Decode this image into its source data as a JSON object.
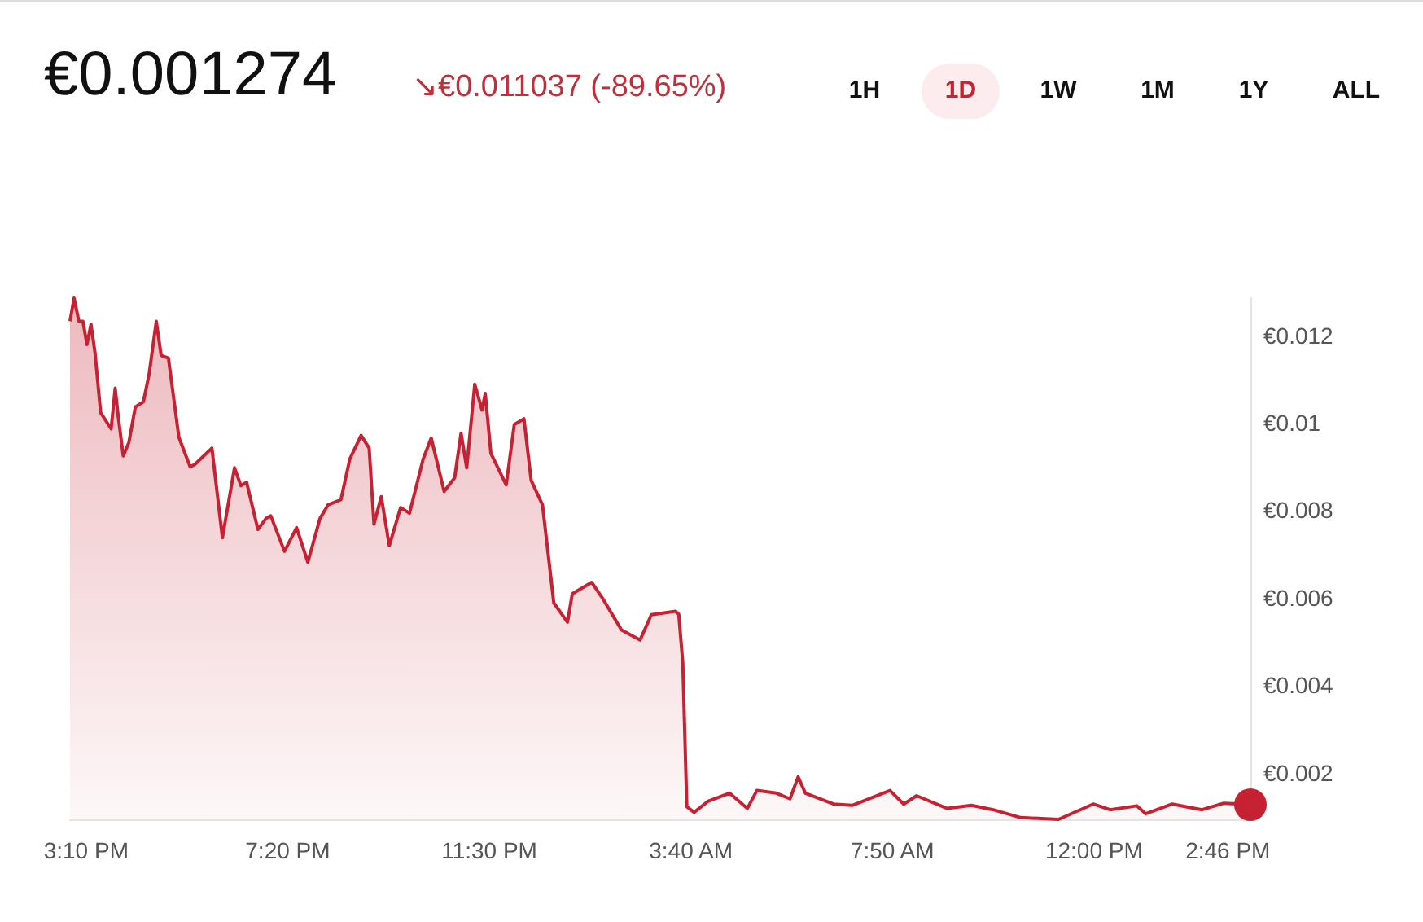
{
  "chart_data": {
    "type": "area",
    "title": "€0.001274",
    "subtitle": "↘€0.011037 (-89.65%)",
    "annotations": [
      "1H",
      "1D",
      "1W",
      "1M",
      "1Y",
      "ALL"
    ],
    "x": [
      "--01-01T14:50",
      "--01-01T14:55",
      "--01-01T15:01",
      "--01-01T15:06",
      "--01-01T15:11",
      "--01-01T15:16",
      "--01-01T15:21",
      "--01-01T15:28",
      "--01-01T15:41",
      "--01-01T15:46",
      "--01-01T15:50",
      "--01-01T15:56",
      "--01-01T16:03",
      "--01-01T16:11",
      "--01-01T16:21",
      "--01-01T16:28",
      "--01-01T16:37",
      "--01-01T16:43",
      "--01-01T16:52",
      "--01-01T17:05",
      "--01-01T17:19",
      "--01-01T17:25",
      "--01-01T17:46",
      "--01-01T17:59",
      "--01-01T18:14",
      "--01-01T18:22",
      "--01-01T18:29",
      "--01-01T18:43",
      "--01-01T18:53",
      "--01-01T18:59",
      "--01-01T19:16",
      "--01-01T19:31",
      "--01-01T19:45",
      "--01-01T20:00",
      "--01-01T20:10",
      "--01-01T20:26",
      "--01-01T20:37",
      "--01-01T20:51",
      "--01-01T21:01",
      "--01-01T21:07",
      "--01-01T21:16",
      "--01-01T21:26",
      "--01-01T21:40",
      "--01-01T21:51",
      "--01-01T22:08",
      "--01-01T22:18",
      "--01-01T22:34",
      "--01-01T22:47",
      "--01-01T22:55",
      "--01-01T23:02",
      "--01-01T23:12",
      "--01-01T23:21",
      "--01-01T23:25",
      "--01-01T23:32",
      "--01-01T23:51",
      "--01-02T00:01",
      "--01-02T00:13",
      "--01-02T00:22",
      "--01-02T00:36",
      "--01-02T00:50",
      "--01-02T01:07",
      "--01-02T01:13",
      "--01-02T01:37",
      "--01-02T01:50",
      "--01-02T02:14",
      "--01-02T02:37",
      "--01-02T02:51",
      "--01-02T03:21",
      "--01-02T03:25",
      "--01-02T03:30",
      "--01-02T03:35",
      "--01-02T03:44",
      "--01-02T04:01",
      "--01-02T04:28",
      "--01-02T04:50",
      "--01-02T05:02",
      "--01-02T05:26",
      "--01-02T05:43",
      "--01-02T05:53",
      "--01-02T06:02",
      "--01-02T06:37",
      "--01-02T07:00",
      "--01-02T07:47",
      "--01-02T08:04",
      "--01-02T08:20",
      "--01-02T08:58",
      "--01-02T09:28",
      "--01-02T09:55",
      "--01-02T10:29",
      "--01-02T11:16",
      "--01-02T11:59",
      "--01-02T12:20",
      "--01-02T12:53",
      "--01-02T13:04",
      "--01-02T13:37",
      "--01-02T14:14",
      "--01-02T14:41",
      "--01-02T15:14"
    ],
    "series": [
      {
        "color": "#c62233",
        "values": [
          0.01232,
          0.01285,
          0.01232,
          0.01232,
          0.01179,
          0.01225,
          0.0116,
          0.01023,
          0.00986,
          0.01079,
          0.01011,
          0.00924,
          0.00955,
          0.01036,
          0.01048,
          0.0111,
          0.01232,
          0.01154,
          0.01148,
          0.00967,
          0.00899,
          0.00905,
          0.00942,
          0.00737,
          0.00897,
          0.00856,
          0.00864,
          0.00756,
          0.00781,
          0.00787,
          0.00706,
          0.0076,
          0.00681,
          0.00781,
          0.00812,
          0.00824,
          0.00917,
          0.00971,
          0.00942,
          0.00768,
          0.00831,
          0.00719,
          0.00806,
          0.00793,
          0.00917,
          0.00965,
          0.00843,
          0.00874,
          0.00976,
          0.00897,
          0.01088,
          0.01029,
          0.01067,
          0.0093,
          0.00858,
          0.00996,
          0.01009,
          0.00868,
          0.00812,
          0.00588,
          0.00544,
          0.00609,
          0.00635,
          0.006,
          0.00526,
          0.00503,
          0.00561,
          0.00569,
          0.00562,
          0.00451,
          0.00122,
          0.00109,
          0.00134,
          0.00153,
          0.00118,
          0.00159,
          0.00153,
          0.0014,
          0.0019,
          0.00153,
          0.00128,
          0.00125,
          0.00159,
          0.00128,
          0.00147,
          0.00118,
          0.00125,
          0.00115,
          0.00097,
          0.00093,
          0.00128,
          0.00115,
          0.00124,
          0.00106,
          0.00128,
          0.00115,
          0.0013,
          0.00127
        ]
      }
    ],
    "xlim": [
      "--01-01T14:50",
      "--01-02T15:14"
    ],
    "ylim": [
      0.00093,
      0.01285
    ],
    "xticks": [
      {
        "value": "--01-01T15:10",
        "label": "3:10 PM"
      },
      {
        "value": "--01-01T19:20",
        "label": "7:20 PM"
      },
      {
        "value": "--01-01T23:30",
        "label": "11:30 PM"
      },
      {
        "value": "--01-02T03:40",
        "label": "3:40 AM"
      },
      {
        "value": "--01-02T07:50",
        "label": "7:50 AM"
      },
      {
        "value": "--01-02T12:00",
        "label": "12:00 PM"
      },
      {
        "value": "--01-02T14:46",
        "label": "2:46 PM"
      }
    ],
    "yticks": [
      {
        "value": 0.002,
        "label": "€0.002"
      },
      {
        "value": 0.004,
        "label": "€0.004"
      },
      {
        "value": 0.006,
        "label": "€0.006"
      },
      {
        "value": 0.008,
        "label": "€0.008"
      },
      {
        "value": 0.01,
        "label": "€0.01"
      },
      {
        "value": 0.012,
        "label": "€0.012"
      }
    ],
    "grid": false
  }
}
